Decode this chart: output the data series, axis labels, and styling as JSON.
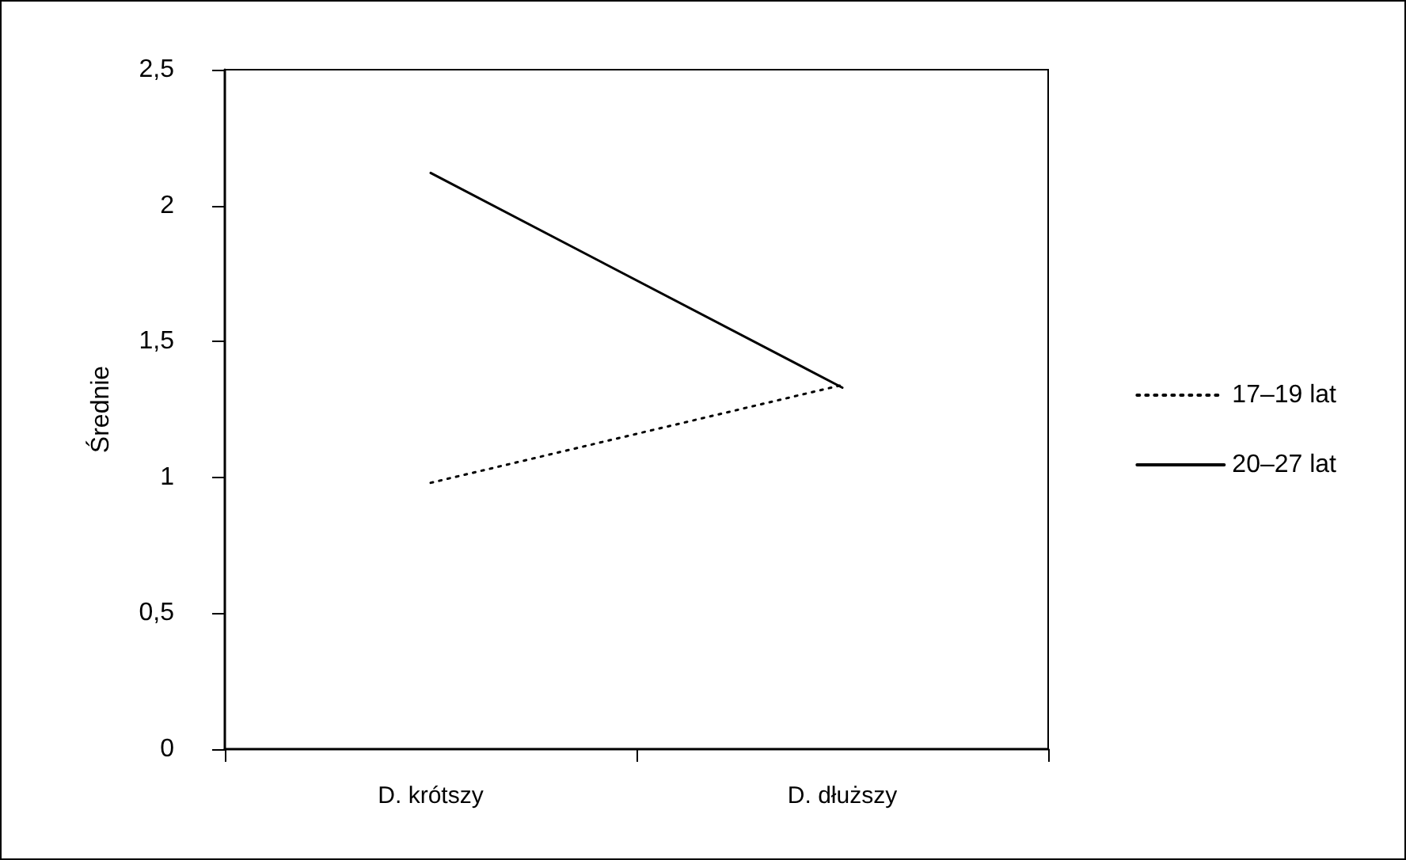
{
  "chart_data": {
    "type": "line",
    "ylabel": "Średnie",
    "categories": [
      "D. krótszy",
      "D. dłuższy"
    ],
    "series": [
      {
        "name": "17–19 lat",
        "color": "#000000",
        "values": [
          0.98,
          1.34
        ],
        "line_style": "dotted"
      },
      {
        "name": "20–27 lat",
        "color": "#000000",
        "values": [
          2.12,
          1.33
        ],
        "line_style": "solid"
      }
    ],
    "ylim": [
      0,
      2.5
    ],
    "yticks": [
      {
        "value": 0,
        "label": "0"
      },
      {
        "value": 0.5,
        "label": "0,5"
      },
      {
        "value": 1,
        "label": "1"
      },
      {
        "value": 1.5,
        "label": "1,5"
      },
      {
        "value": 2,
        "label": "2"
      },
      {
        "value": 2.5,
        "label": "2,5"
      }
    ],
    "grid": false,
    "legend": "right",
    "marker": "none"
  }
}
